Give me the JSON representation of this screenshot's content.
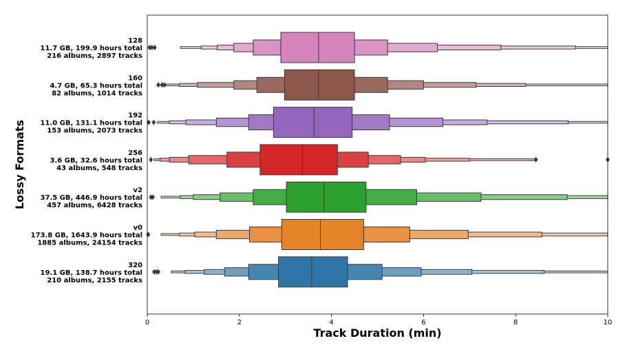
{
  "chart_data": {
    "type": "boxenplot",
    "title": "",
    "xlabel": "Track Duration (min)",
    "ylabel": "Lossy Formats",
    "xlim": [
      0,
      10
    ],
    "xticks": [
      "0",
      "2",
      "4",
      "6",
      "8",
      "10"
    ],
    "grid": false,
    "categories": [
      {
        "name": "128",
        "line1": "11.7 GB, 199.9 hours total",
        "line2": "216 albums, 2897 tracks",
        "color": "#d684bd",
        "median": 3.72,
        "boxes": [
          [
            2.9,
            4.5
          ],
          [
            2.3,
            5.22
          ],
          [
            1.88,
            6.3
          ],
          [
            1.52,
            7.68
          ],
          [
            1.17,
            9.3
          ],
          [
            0.72,
            10.0
          ]
        ],
        "outliers": [
          0.05,
          0.1,
          0.16
        ]
      },
      {
        "name": "160",
        "line1": "4.7 GB, 65.3 hours total",
        "line2": "82 albums, 1014 tracks",
        "color": "#8c564b",
        "median": 3.72,
        "boxes": [
          [
            2.98,
            4.5
          ],
          [
            2.38,
            5.22
          ],
          [
            1.88,
            6.0
          ],
          [
            1.09,
            7.14
          ],
          [
            0.7,
            8.22
          ],
          [
            0.38,
            10.0
          ]
        ],
        "outliers": [
          0.24,
          0.32,
          0.37
        ]
      },
      {
        "name": "192",
        "line1": "11.0 GB, 131.1 hours total",
        "line2": "153 albums, 2073 tracks",
        "color": "#9467bd",
        "median": 3.62,
        "boxes": [
          [
            2.74,
            4.45
          ],
          [
            2.2,
            5.26
          ],
          [
            1.5,
            6.42
          ],
          [
            0.84,
            7.38
          ],
          [
            0.48,
            9.14
          ],
          [
            0.22,
            10.0
          ]
        ],
        "outliers": [
          0.03,
          0.14
        ]
      },
      {
        "name": "256",
        "line1": "3.6 GB, 32.6 hours total",
        "line2": "43 albums, 548 tracks",
        "color": "#d62728",
        "median": 3.37,
        "boxes": [
          [
            2.45,
            4.13
          ],
          [
            1.73,
            4.8
          ],
          [
            0.9,
            5.5
          ],
          [
            0.48,
            6.04
          ],
          [
            0.28,
            7.0
          ],
          [
            0.15,
            8.42
          ]
        ],
        "outliers": [
          0.08,
          8.44,
          10.0
        ]
      },
      {
        "name": "v2",
        "line1": "37.5 GB, 446.9 hours total",
        "line2": "457 albums, 6428 tracks",
        "color": "#2ca02c",
        "median": 3.84,
        "boxes": [
          [
            3.02,
            4.75
          ],
          [
            2.3,
            5.85
          ],
          [
            1.58,
            7.25
          ],
          [
            1.0,
            9.12
          ],
          [
            0.72,
            10.0
          ],
          [
            0.3,
            10.0
          ]
        ],
        "outliers": [
          0.08,
          0.12
        ]
      },
      {
        "name": "v0",
        "line1": "173.8 GB, 1643.9 hours total",
        "line2": "1885 albums, 24154 tracks",
        "color": "#e6832a",
        "median": 3.76,
        "boxes": [
          [
            2.92,
            4.7
          ],
          [
            2.22,
            5.7
          ],
          [
            1.5,
            6.97
          ],
          [
            1.03,
            8.57
          ],
          [
            0.7,
            10.0
          ],
          [
            0.3,
            10.0
          ]
        ],
        "outliers": [
          0.02
        ]
      },
      {
        "name": "320",
        "line1": "19.1 GB, 138.7 hours total",
        "line2": "210 albums, 2155 tracks",
        "color": "#2f76a8",
        "median": 3.57,
        "boxes": [
          [
            2.85,
            4.35
          ],
          [
            2.2,
            5.1
          ],
          [
            1.68,
            5.95
          ],
          [
            1.24,
            7.05
          ],
          [
            0.82,
            8.62
          ],
          [
            0.52,
            10.0
          ]
        ],
        "outliers": [
          0.15,
          0.2,
          0.24
        ]
      }
    ]
  }
}
